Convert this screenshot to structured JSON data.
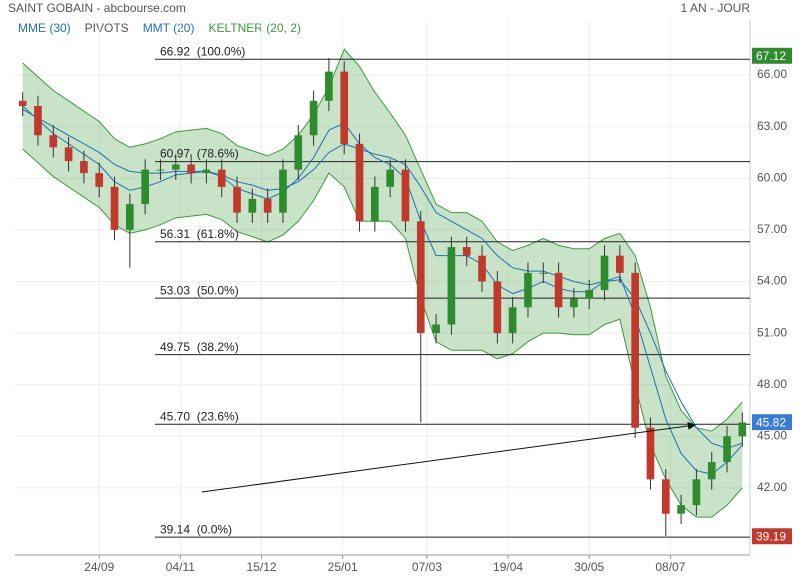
{
  "header": {
    "title": "SAINT GOBAIN - abcbourse.com",
    "period": "1 AN - JOUR",
    "legend": [
      {
        "name": "MME (30)",
        "color": "#1f6fb5"
      },
      {
        "name": "PIVOTS",
        "color": "#555555"
      },
      {
        "name": "MMT (20)",
        "color": "#1f6fb5"
      },
      {
        "name": "KELTNER (20, 2)",
        "color": "#3c9a3c"
      }
    ]
  },
  "chart_data": {
    "type": "candlestick",
    "xlim": [
      -0.5,
      47.5
    ],
    "xticks": [
      {
        "value": 5,
        "label": "24/09"
      },
      {
        "value": 10.3,
        "label": "04/11"
      },
      {
        "value": 15.6,
        "label": "15/12"
      },
      {
        "value": 20.9,
        "label": "25/01"
      },
      {
        "value": 26.4,
        "label": "07/03"
      },
      {
        "value": 31.7,
        "label": "19/04"
      },
      {
        "value": 37.0,
        "label": "30/05"
      },
      {
        "value": 42.3,
        "label": "08/07"
      }
    ],
    "ylim": [
      38.1,
      69.2
    ],
    "yticks": [
      {
        "value": 42,
        "label": "42.00"
      },
      {
        "value": 45,
        "label": "45.00"
      },
      {
        "value": 48,
        "label": "48.00"
      },
      {
        "value": 51,
        "label": "51.00"
      },
      {
        "value": 54,
        "label": "54.00"
      },
      {
        "value": 57,
        "label": "57.00"
      },
      {
        "value": 60,
        "label": "60.00"
      },
      {
        "value": 63,
        "label": "63.00"
      },
      {
        "value": 66,
        "label": "66.00"
      }
    ],
    "grid": true,
    "up_color": "#2e8b2e",
    "down_color": "#c0392b",
    "open": [
      64.5,
      64.2,
      62.5,
      61.8,
      61.0,
      60.3,
      59.5,
      57.0,
      58.5,
      60.5,
      60.5,
      60.8,
      60.3,
      60.5,
      59.5,
      58.0,
      58.8,
      58.0,
      60.5,
      62.5,
      64.5,
      66.2,
      62.0,
      57.5,
      59.5,
      60.5,
      57.5,
      51.0,
      51.5,
      56.0,
      55.5,
      54.0,
      51.0,
      52.5,
      54.5,
      54.5,
      52.5,
      53.0,
      53.5,
      55.5,
      54.5,
      45.5,
      42.5,
      40.5,
      41.0,
      42.5,
      43.5,
      45.0
    ],
    "high": [
      65.0,
      64.8,
      63.1,
      62.4,
      61.6,
      60.9,
      60.1,
      59.1,
      61.1,
      61.1,
      61.4,
      61.4,
      61.1,
      61.1,
      60.1,
      59.4,
      59.4,
      61.1,
      63.1,
      65.1,
      67.0,
      66.8,
      62.6,
      60.1,
      61.1,
      61.1,
      58.1,
      52.1,
      56.6,
      56.6,
      56.1,
      54.6,
      53.1,
      55.1,
      55.1,
      55.1,
      53.6,
      54.1,
      56.1,
      56.1,
      55.1,
      46.1,
      43.1,
      41.6,
      43.1,
      44.1,
      45.6,
      46.4
    ],
    "low": [
      63.6,
      61.9,
      61.2,
      60.4,
      59.7,
      58.9,
      56.4,
      54.8,
      57.9,
      59.9,
      59.9,
      59.7,
      59.7,
      58.9,
      57.4,
      57.4,
      57.4,
      57.4,
      59.9,
      61.9,
      63.9,
      61.4,
      56.9,
      56.9,
      58.9,
      56.9,
      45.8,
      50.4,
      50.9,
      54.9,
      53.4,
      50.4,
      50.4,
      51.9,
      53.9,
      51.9,
      51.9,
      52.4,
      52.9,
      53.9,
      44.9,
      41.9,
      39.2,
      39.9,
      40.4,
      41.9,
      42.9,
      44.4
    ],
    "close": [
      64.2,
      62.5,
      61.8,
      61.0,
      60.3,
      59.5,
      57.0,
      58.5,
      60.5,
      60.5,
      60.8,
      60.3,
      60.5,
      59.5,
      58.0,
      58.8,
      58.0,
      60.5,
      62.5,
      64.5,
      66.2,
      62.0,
      57.5,
      59.5,
      60.5,
      57.5,
      51.0,
      51.5,
      56.0,
      55.5,
      54.0,
      51.0,
      52.5,
      54.5,
      54.5,
      52.5,
      53.0,
      53.5,
      55.5,
      54.5,
      45.5,
      42.5,
      40.5,
      41.0,
      42.5,
      43.5,
      45.0,
      45.8
    ],
    "series": [
      {
        "name": "MMT (20)",
        "color": "#1f6fb5",
        "values": [
          64.2,
          63.4,
          62.6,
          62.0,
          61.4,
          60.8,
          59.8,
          59.3,
          59.5,
          59.8,
          60.2,
          60.3,
          60.4,
          60.1,
          59.4,
          59.1,
          58.8,
          59.2,
          60.0,
          61.2,
          62.8,
          63.2,
          62.0,
          61.2,
          60.8,
          60.0,
          57.5,
          55.5,
          55.5,
          55.5,
          55.0,
          53.8,
          53.3,
          53.6,
          54.0,
          53.6,
          53.4,
          53.4,
          54.0,
          54.3,
          52.0,
          49.0,
          46.0,
          44.0,
          43.0,
          42.8,
          43.5,
          44.5
        ]
      },
      {
        "name": "MME (30)",
        "color": "#1f6fb5",
        "values": [
          64.0,
          63.5,
          63.0,
          62.5,
          62.0,
          61.5,
          60.8,
          60.4,
          60.3,
          60.3,
          60.4,
          60.4,
          60.4,
          60.2,
          59.8,
          59.6,
          59.3,
          59.4,
          59.8,
          60.5,
          61.5,
          62.0,
          61.7,
          61.4,
          61.2,
          60.8,
          59.5,
          58.0,
          57.5,
          57.0,
          56.5,
          55.5,
          54.8,
          54.6,
          54.6,
          54.3,
          54.0,
          53.8,
          54.0,
          54.1,
          53.0,
          51.0,
          48.8,
          47.0,
          45.5,
          44.6,
          44.3,
          44.6
        ]
      }
    ],
    "keltner": {
      "color": "#3c9a3c",
      "upper": [
        66.7,
        65.9,
        65.1,
        64.5,
        63.9,
        63.3,
        62.3,
        61.8,
        62.0,
        62.3,
        62.7,
        62.8,
        62.9,
        62.6,
        61.9,
        61.6,
        61.3,
        61.7,
        62.5,
        63.7,
        65.3,
        67.5,
        66.5,
        65.0,
        63.8,
        62.5,
        60.5,
        58.5,
        58.0,
        58.0,
        57.5,
        56.3,
        55.8,
        56.1,
        56.5,
        56.1,
        55.9,
        55.9,
        56.5,
        56.8,
        55.5,
        52.5,
        48.5,
        46.5,
        45.5,
        45.3,
        46.0,
        47.0
      ],
      "lower": [
        61.7,
        60.9,
        60.1,
        59.5,
        58.9,
        58.3,
        57.3,
        56.8,
        57.0,
        57.3,
        57.7,
        57.8,
        57.9,
        57.6,
        56.9,
        56.6,
        56.3,
        56.7,
        57.5,
        58.7,
        60.3,
        59.5,
        57.5,
        57.5,
        57.5,
        56.5,
        53.0,
        50.5,
        50.0,
        50.0,
        50.0,
        49.5,
        49.8,
        50.5,
        51.0,
        51.0,
        50.9,
        50.9,
        51.5,
        51.8,
        48.0,
        44.5,
        42.5,
        41.0,
        40.3,
        40.3,
        41.0,
        42.0
      ]
    },
    "fib_levels": [
      {
        "value": 66.92,
        "label": "66.92  (100.0%)"
      },
      {
        "value": 60.97,
        "label": "60.97  (78.6%)"
      },
      {
        "value": 56.31,
        "label": "56.31  (61.8%)"
      },
      {
        "value": 53.03,
        "label": "53.03  (50.0%)"
      },
      {
        "value": 49.75,
        "label": "49.75  (38.2%)"
      },
      {
        "value": 45.7,
        "label": "45.70  (23.6%)"
      },
      {
        "value": 39.14,
        "label": "39.14  (0.0%)"
      }
    ],
    "price_badges": [
      {
        "value": 67.12,
        "color": "#2e8b2e"
      },
      {
        "value": 45.82,
        "color": "#3a7bd5"
      },
      {
        "value": 39.19,
        "color": "#c0392b"
      }
    ],
    "trendline": {
      "x": [
        11.7,
        43.9
      ],
      "y": [
        41.76,
        45.66
      ]
    }
  }
}
